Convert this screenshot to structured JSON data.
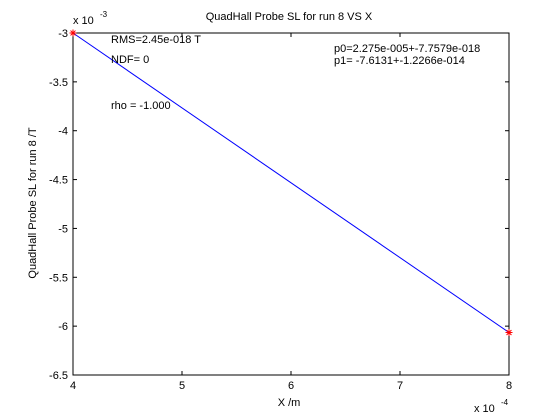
{
  "chart_data": {
    "type": "line",
    "title": "QuadHall Probe SL for run 8 VS X",
    "xlabel": "X /m",
    "ylabel": "QuadHall Probe SL for run 8 /T",
    "x_multiplier": "x 10",
    "x_exponent": "-4",
    "y_multiplier": "x 10",
    "y_exponent": "-3",
    "xlim": [
      0.0004,
      0.0008
    ],
    "ylim": [
      -0.0065,
      -0.003
    ],
    "x_ticks": [
      0.0004,
      0.0005,
      0.0006,
      0.0007,
      0.0008
    ],
    "x_tick_labels": [
      "4",
      "5",
      "6",
      "7",
      "8"
    ],
    "y_ticks": [
      -0.003,
      -0.0035,
      -0.004,
      -0.0045,
      -0.005,
      -0.0055,
      -0.006,
      -0.0065
    ],
    "y_tick_labels": [
      "-3",
      "-3.5",
      "-4",
      "-4.5",
      "-5",
      "-5.5",
      "-6",
      "-6.5"
    ],
    "grid": false,
    "series": [
      {
        "role": "measurement-points",
        "marker": "asterisk",
        "color": "#ff0000",
        "x": [
          0.0004,
          0.0008
        ],
        "y": [
          -0.003,
          -0.0060652
        ]
      },
      {
        "role": "fit-line",
        "color": "#0000ff",
        "x": [
          0.0004,
          0.0008
        ],
        "y": [
          -0.003,
          -0.0060652
        ]
      }
    ],
    "annotations": {
      "rms": "RMS=2.45e-018 T",
      "ndf": "NDF=    0",
      "rho": "rho    = -1.000",
      "p0": "p0=2.275e-005+-7.7579e-018",
      "p1": "p1=  -7.6131+-1.2266e-014"
    }
  }
}
